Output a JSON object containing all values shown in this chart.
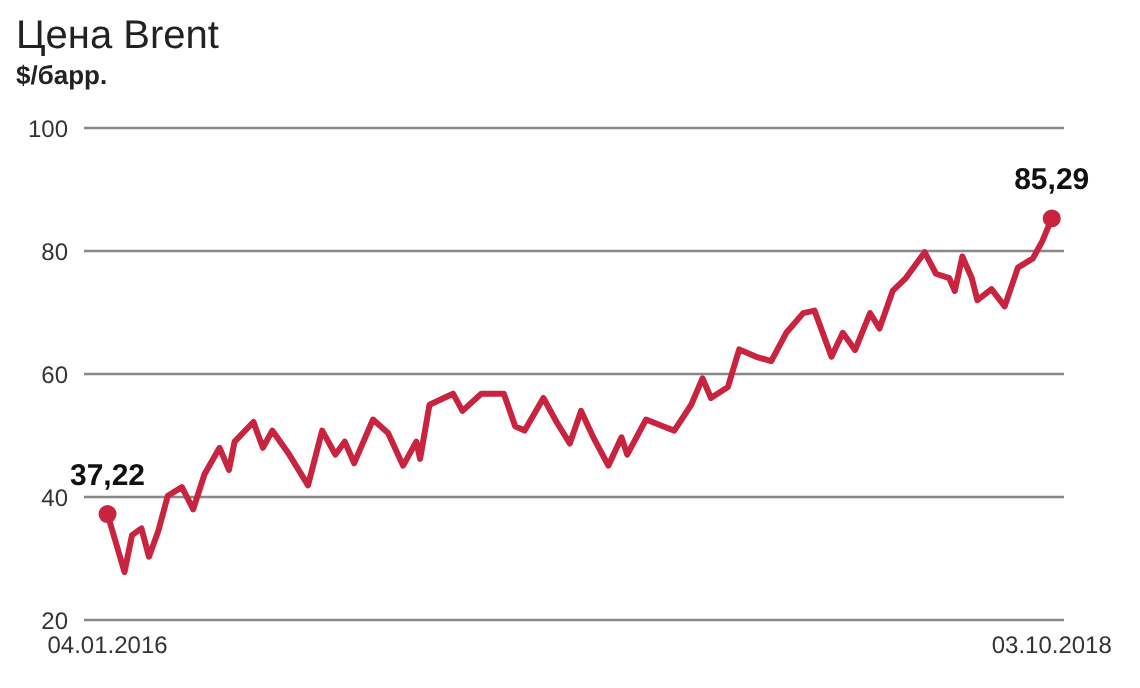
{
  "chart_data": {
    "type": "line",
    "title": "Цена Brent",
    "subtitle": "$/барр.",
    "xlim": [
      "2015-12-10",
      "2018-10-16"
    ],
    "xticks": [
      {
        "value": "2016-01-04",
        "label": "04.01.2016"
      },
      {
        "value": "2018-10-03",
        "label": "03.10.2018"
      }
    ],
    "ylim": [
      20,
      100
    ],
    "yticks": [
      20,
      40,
      60,
      80,
      100
    ],
    "grid": "y",
    "series": [
      {
        "color": "#c8243f",
        "marker": "none",
        "x": [
          "2016-01-04",
          "2016-01-22",
          "2016-01-30",
          "2016-02-09",
          "2016-02-17",
          "2016-02-27",
          "2016-03-08",
          "2016-03-23",
          "2016-04-04",
          "2016-04-16",
          "2016-05-02",
          "2016-05-12",
          "2016-05-18",
          "2016-06-07",
          "2016-06-17",
          "2016-06-27",
          "2016-07-15",
          "2016-08-04",
          "2016-08-19",
          "2016-09-02",
          "2016-09-12",
          "2016-09-22",
          "2016-10-12",
          "2016-10-28",
          "2016-11-13",
          "2016-11-27",
          "2016-12-01",
          "2016-12-11",
          "2017-01-05",
          "2017-01-15",
          "2017-02-04",
          "2017-02-28",
          "2017-03-12",
          "2017-03-22",
          "2017-04-11",
          "2017-04-25",
          "2017-05-09",
          "2017-05-21",
          "2017-06-03",
          "2017-06-19",
          "2017-07-03",
          "2017-07-09",
          "2017-07-29",
          "2017-08-16",
          "2017-08-28",
          "2017-09-15",
          "2017-09-27",
          "2017-10-06",
          "2017-10-24",
          "2017-11-05",
          "2017-11-23",
          "2017-12-09",
          "2017-12-25",
          "2018-01-12",
          "2018-01-24",
          "2018-02-11",
          "2018-02-23",
          "2018-03-08",
          "2018-03-24",
          "2018-04-03",
          "2018-04-17",
          "2018-05-01",
          "2018-05-21",
          "2018-06-02",
          "2018-06-16",
          "2018-06-22",
          "2018-06-30",
          "2018-07-10",
          "2018-07-16",
          "2018-07-31",
          "2018-08-14",
          "2018-08-28",
          "2018-09-13",
          "2018-09-23",
          "2018-10-03"
        ],
        "values": [
          37.2,
          27.8,
          33.8,
          34.9,
          30.3,
          34.5,
          40.2,
          41.6,
          38,
          43.7,
          48,
          44.4,
          49,
          52.2,
          48,
          50.8,
          46.9,
          41.9,
          50.8,
          46.9,
          49,
          45.5,
          52.6,
          50.4,
          45.1,
          49,
          46.2,
          55,
          56.8,
          54,
          56.8,
          56.8,
          51.5,
          50.8,
          56.1,
          52.2,
          48.7,
          54,
          49.7,
          45.1,
          49.7,
          46.9,
          52.6,
          51.5,
          50.8,
          55,
          59.3,
          56.1,
          57.9,
          64,
          62.8,
          62.1,
          66.7,
          69.9,
          70.3,
          62.8,
          66.7,
          63.9,
          69.9,
          67.4,
          73.5,
          75.6,
          79.8,
          76.3,
          75.6,
          73.5,
          79.1,
          75.6,
          72,
          73.8,
          71,
          77.3,
          78.8,
          81.6,
          85.3
        ]
      },
      {
        "type": "scatter",
        "color": "#c8243f",
        "marker": "circle",
        "x": [
          "2016-01-04",
          "2018-10-03"
        ],
        "values": [
          37.22,
          85.29
        ],
        "value_labels": [
          "37,22",
          "85,29"
        ]
      }
    ]
  }
}
